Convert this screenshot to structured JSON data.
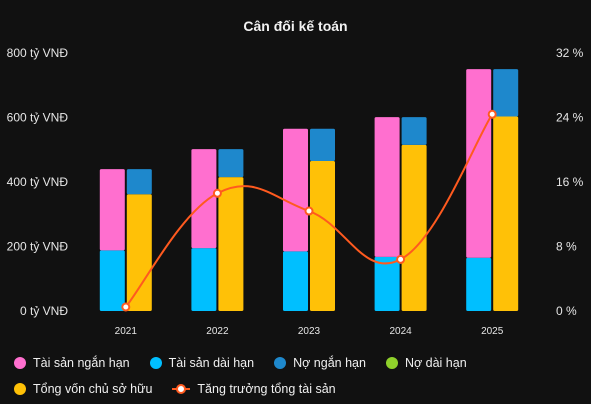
{
  "chart_data": {
    "type": "bar",
    "title": "Cân đối kế toán",
    "categories": [
      "2021",
      "2022",
      "2023",
      "2024",
      "2025"
    ],
    "y_left": {
      "ylim": [
        0,
        800
      ],
      "ticks": [
        0,
        200,
        400,
        600,
        800
      ],
      "tick_labels": [
        "0 tỷ VNĐ",
        "200 tỷ VNĐ",
        "400 tỷ VNĐ",
        "600 tỷ VNĐ",
        "800 tỷ VNĐ"
      ]
    },
    "y_right": {
      "ylim": [
        0,
        32
      ],
      "ticks": [
        0,
        8,
        16,
        24,
        32
      ],
      "tick_labels": [
        "0 %",
        "8 %",
        "16 %",
        "24 %",
        "32 %"
      ]
    },
    "stacks": [
      {
        "stack": "assets",
        "series": [
          {
            "name": "Tài sản dài hạn",
            "color": "#00bfff",
            "values": [
              188,
              195,
              185,
              168,
              165
            ]
          },
          {
            "name": "Tài sản ngắn hạn",
            "color": "#ff6fcf",
            "values": [
              252,
              307,
              380,
              433,
              585
            ]
          }
        ]
      },
      {
        "stack": "capital",
        "series": [
          {
            "name": "Tổng vốn chủ sở hữu",
            "color": "#ffc107",
            "values": [
              362,
              415,
              465,
              515,
              603
            ]
          },
          {
            "name": "Nợ dài hạn",
            "color": "#8fd12b",
            "values": [
              0,
              0,
              0,
              0,
              0
            ]
          },
          {
            "name": "Nợ ngắn hạn",
            "color": "#1e88cc",
            "values": [
              78,
              87,
              100,
              86,
              147
            ]
          }
        ]
      }
    ],
    "line": {
      "name": "Tăng trưởng tổng tài sản",
      "color": "#ff5a1f",
      "values": [
        0.5,
        14.6,
        12.4,
        6.4,
        24.4
      ]
    },
    "legend": {
      "position": "bottom",
      "items": [
        {
          "label": "Tài sản ngắn hạn",
          "color": "#ff6fcf",
          "kind": "dot"
        },
        {
          "label": "Tài sản dài hạn",
          "color": "#00bfff",
          "kind": "dot"
        },
        {
          "label": "Nợ ngắn hạn",
          "color": "#1e88cc",
          "kind": "dot"
        },
        {
          "label": "Nợ dài hạn",
          "color": "#8fd12b",
          "kind": "dot"
        },
        {
          "label": "Tổng vốn chủ sở hữu",
          "color": "#ffc107",
          "kind": "dot"
        },
        {
          "label": "Tăng trưởng tổng tài sản",
          "color": "#ff5a1f",
          "kind": "line"
        }
      ]
    },
    "grid": false
  }
}
